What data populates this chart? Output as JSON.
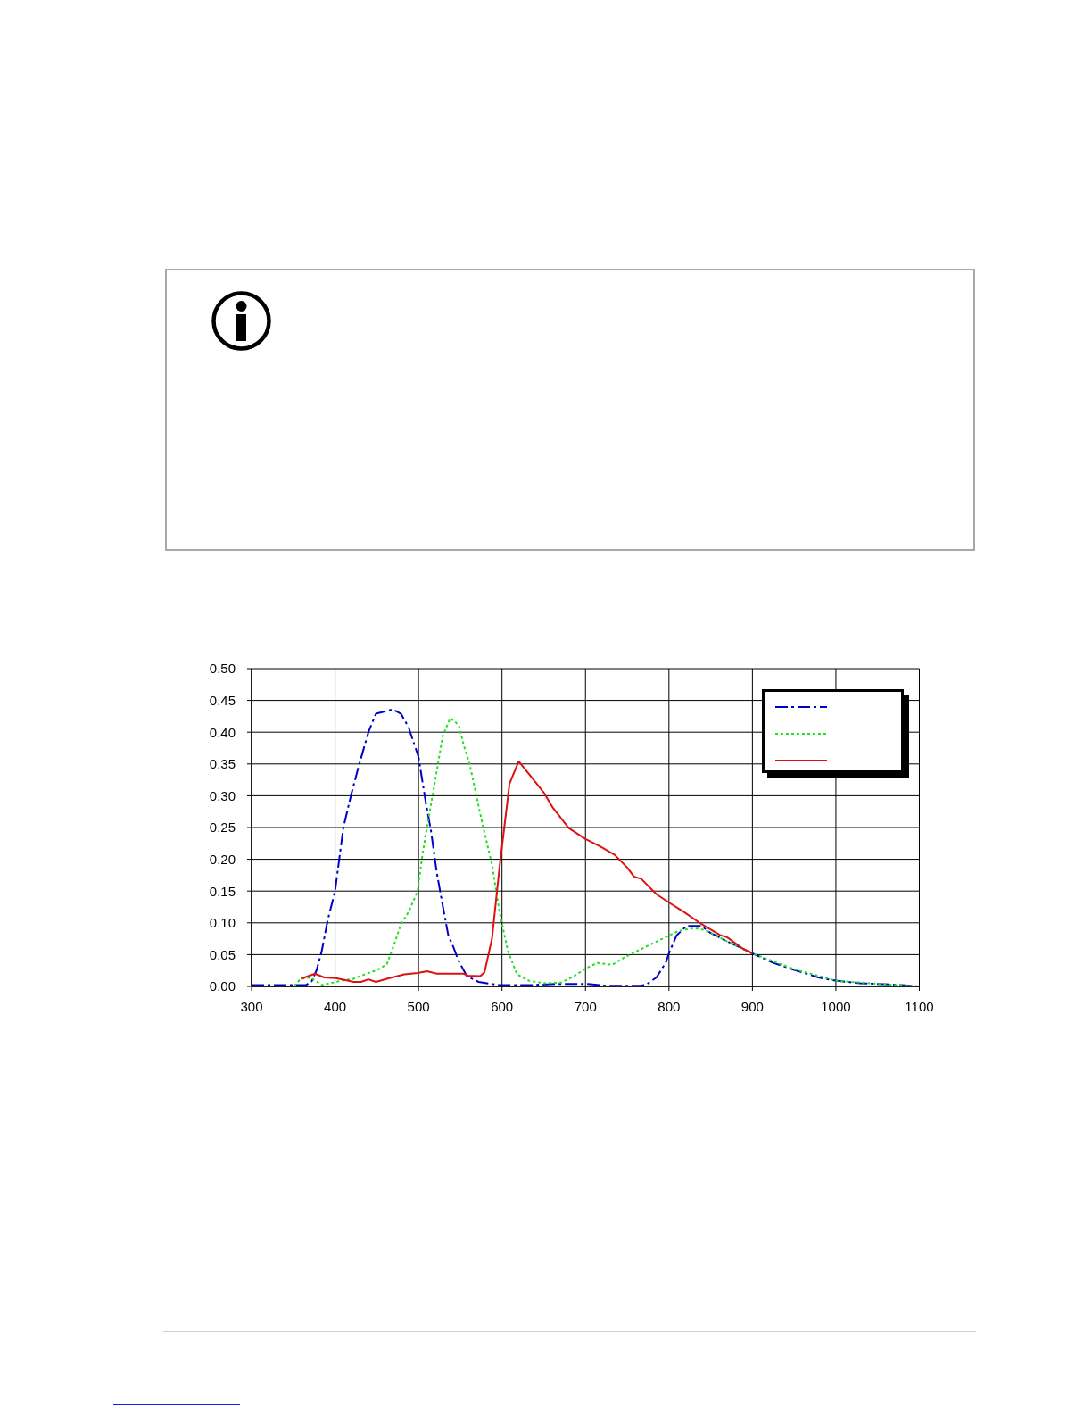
{
  "chart_data": {
    "type": "line",
    "xlim": [
      300,
      1100
    ],
    "xticks": [
      300,
      400,
      500,
      600,
      700,
      800,
      900,
      1000,
      1100
    ],
    "ylim": [
      0,
      0.5
    ],
    "yticks": [
      {
        "value": 0,
        "label": "0.00"
      },
      0.05,
      {
        "value": 0.1,
        "label": "0.10"
      },
      0.15,
      {
        "value": 0.2,
        "label": "0.20"
      },
      0.25,
      {
        "value": 0.3,
        "label": "0.30"
      },
      0.35,
      {
        "value": 0.4,
        "label": "0.40"
      },
      0.45,
      {
        "value": 0.5,
        "label": "0.50"
      }
    ],
    "grid": true,
    "series": [
      {
        "color": "#0000cc",
        "line_style": "dashdot",
        "x": [
          300,
          330,
          365,
          372,
          378,
          384,
          391,
          400,
          410,
          419,
          428,
          440,
          449,
          469,
          479,
          488,
          500,
          508,
          515,
          522,
          529,
          536,
          540,
          548,
          558,
          572,
          597,
          632,
          668,
          703,
          725,
          767,
          774,
          785,
          796,
          800,
          809,
          821,
          839,
          850,
          871,
          900,
          925,
          950,
          979,
          1000,
          1029,
          1050,
          1079,
          1100
        ],
        "values": [
          0.002,
          0.002,
          0.002,
          0.008,
          0.026,
          0.055,
          0.103,
          0.15,
          0.25,
          0.3,
          0.345,
          0.4,
          0.429,
          0.436,
          0.429,
          0.408,
          0.361,
          0.295,
          0.244,
          0.178,
          0.127,
          0.078,
          0.068,
          0.04,
          0.016,
          0.007,
          0.002,
          0.002,
          0.004,
          0.004,
          0.001,
          0.001,
          0.004,
          0.014,
          0.037,
          0.052,
          0.08,
          0.095,
          0.095,
          0.084,
          0.07,
          0.052,
          0.037,
          0.026,
          0.014,
          0.009,
          0.005,
          0.004,
          0.002,
          0.0
        ]
      },
      {
        "color": "#22e022",
        "line_style": "dotted",
        "x": [
          351,
          359,
          371,
          376,
          385,
          394,
          408,
          422,
          440,
          451,
          462,
          470,
          479,
          488,
          499,
          504,
          511,
          518,
          524,
          529,
          538,
          545,
          549,
          554,
          561,
          577,
          588,
          597,
          607,
          618,
          632,
          650,
          671,
          686,
          700,
          714,
          732,
          746,
          767,
          789,
          800,
          811,
          825,
          836,
          846,
          871,
          900,
          950,
          1000,
          1050,
          1100
        ],
        "values": [
          0.001,
          0.012,
          0.014,
          0.009,
          0.002,
          0.005,
          0.009,
          0.012,
          0.021,
          0.026,
          0.035,
          0.063,
          0.098,
          0.117,
          0.15,
          0.201,
          0.258,
          0.309,
          0.356,
          0.394,
          0.422,
          0.415,
          0.408,
          0.38,
          0.351,
          0.253,
          0.192,
          0.117,
          0.056,
          0.019,
          0.009,
          0.005,
          0.006,
          0.016,
          0.028,
          0.037,
          0.034,
          0.045,
          0.059,
          0.073,
          0.08,
          0.087,
          0.091,
          0.091,
          0.087,
          0.07,
          0.052,
          0.027,
          0.009,
          0.004,
          0.0
        ]
      },
      {
        "color": "#dd1111",
        "line_style": "solid",
        "x": [
          359,
          376,
          387,
          401,
          415,
          422,
          431,
          440,
          449,
          465,
          483,
          499,
          510,
          522,
          554,
          559,
          574,
          579,
          588,
          597,
          609,
          620,
          636,
          650,
          661,
          680,
          700,
          718,
          735,
          750,
          758,
          767,
          785,
          800,
          818,
          839,
          861,
          870,
          889,
          900
        ],
        "values": [
          0.012,
          0.02,
          0.014,
          0.013,
          0.009,
          0.007,
          0.007,
          0.011,
          0.007,
          0.013,
          0.019,
          0.021,
          0.024,
          0.02,
          0.02,
          0.017,
          0.016,
          0.022,
          0.075,
          0.187,
          0.319,
          0.354,
          0.328,
          0.305,
          0.281,
          0.249,
          0.232,
          0.22,
          0.207,
          0.187,
          0.173,
          0.169,
          0.145,
          0.132,
          0.117,
          0.098,
          0.081,
          0.077,
          0.059,
          0.052
        ]
      }
    ]
  }
}
